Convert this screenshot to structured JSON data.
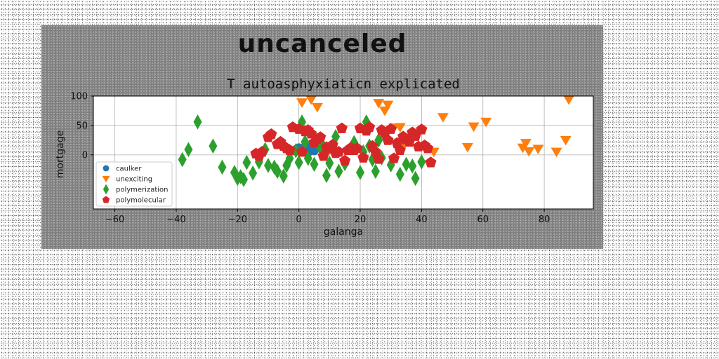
{
  "chart_data": {
    "type": "scatter",
    "suptitle": "uncanceled",
    "title": "T autoasphyxiaticn explicated",
    "xlabel": "galanga",
    "ylabel": "mortgage",
    "xlim": [
      -67,
      96
    ],
    "ylim": [
      -92,
      100
    ],
    "xticks": [
      -60,
      -40,
      -20,
      0,
      20,
      40,
      60,
      80
    ],
    "xtick_labels": [
      "−60",
      "−40",
      "−20",
      "0",
      "20",
      "40",
      "60",
      "80"
    ],
    "yticks": [
      0,
      50,
      100
    ],
    "ytick_labels": [
      "0",
      "50",
      "100"
    ],
    "grid": true,
    "legend": "lower-left",
    "series": [
      {
        "name": "caulker",
        "marker": "circle",
        "color": "#1f77b4",
        "x": [
          -2,
          -1,
          0,
          1,
          2,
          3,
          4,
          5,
          6,
          1,
          3,
          5,
          0,
          2,
          4
        ],
        "y": [
          7,
          9,
          10,
          11,
          9,
          8,
          10,
          11,
          13,
          5,
          4,
          7,
          12,
          13,
          14
        ]
      },
      {
        "name": "unexciting",
        "marker": "triangle-down",
        "color": "#ff7f0e",
        "x": [
          1,
          4,
          6,
          26,
          29,
          28,
          31,
          33,
          34,
          44,
          47,
          55,
          57,
          61,
          73,
          74,
          75,
          78,
          84,
          87,
          88
        ],
        "y": [
          89,
          94,
          81,
          88,
          85,
          75,
          46,
          47,
          14,
          5,
          64,
          13,
          48,
          56,
          12,
          20,
          6,
          10,
          5,
          25,
          94
        ]
      },
      {
        "name": "polymerization",
        "marker": "diamond",
        "color": "#2ca02c",
        "x": [
          -33,
          -36,
          -38,
          -28,
          -25,
          -21,
          -20,
          -19,
          -18,
          -17,
          -15,
          -13,
          -11,
          -10,
          -8,
          -7,
          -5,
          -4,
          -3,
          -1,
          0,
          1,
          2,
          3,
          5,
          7,
          8,
          9,
          10,
          12,
          13,
          15,
          18,
          20,
          21,
          22,
          23,
          24,
          25,
          26,
          27,
          30,
          33,
          35,
          37,
          38,
          40
        ],
        "y": [
          56,
          9,
          -8,
          15,
          -21,
          -30,
          -40,
          -37,
          -42,
          -13,
          -31,
          -12,
          9,
          -18,
          -21,
          -28,
          -36,
          -18,
          -6,
          7,
          -13,
          56,
          22,
          -6,
          -16,
          12,
          14,
          -35,
          -14,
          31,
          -28,
          -15,
          21,
          -30,
          5,
          56,
          15,
          -8,
          -28,
          25,
          -5,
          -17,
          -33,
          -16,
          -19,
          -40,
          -12
        ]
      },
      {
        "name": "polymolecular",
        "marker": "pentagon",
        "color": "#d62728",
        "x": [
          -14,
          -13,
          -12,
          -10,
          -9,
          -7,
          -6,
          -5,
          -4,
          -3,
          -2,
          0,
          1,
          2,
          3,
          4,
          5,
          6,
          7,
          8,
          9,
          10,
          11,
          12,
          13,
          14,
          15,
          16,
          17,
          18,
          19,
          20,
          21,
          22,
          23,
          24,
          25,
          26,
          27,
          28,
          29,
          30,
          31,
          32,
          33,
          34,
          35,
          36,
          37,
          38,
          39,
          40,
          41,
          42,
          43
        ],
        "y": [
          2,
          -2,
          5,
          30,
          35,
          18,
          22,
          15,
          11,
          8,
          47,
          44,
          5,
          40,
          42,
          36,
          21,
          27,
          30,
          -2,
          13,
          10,
          17,
          3,
          5,
          45,
          -10,
          8,
          12,
          8,
          11,
          45,
          -5,
          41,
          47,
          15,
          5,
          -7,
          42,
          37,
          25,
          44,
          -6,
          20,
          8,
          31,
          26,
          22,
          38,
          32,
          14,
          43,
          16,
          11,
          -13
        ]
      }
    ]
  }
}
